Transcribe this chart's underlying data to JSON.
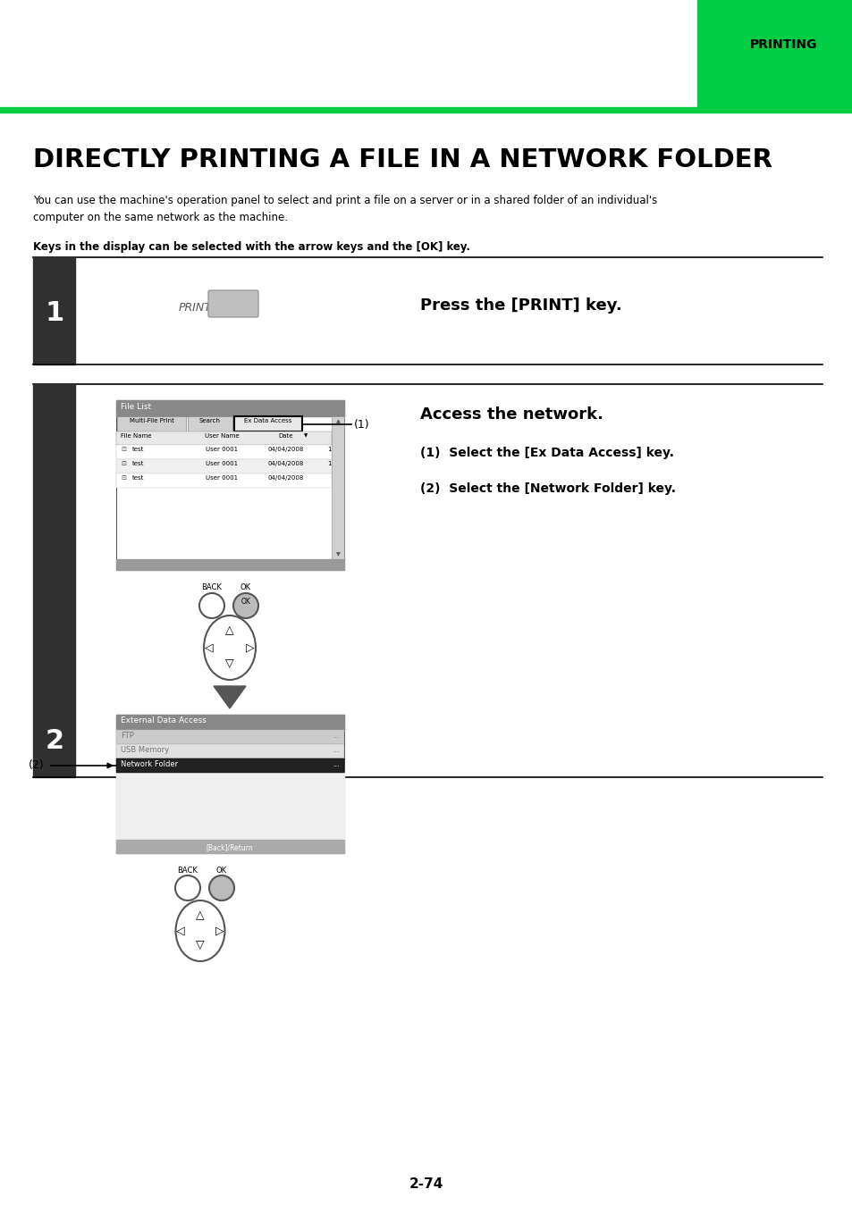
{
  "title": "DIRECTLY PRINTING A FILE IN A NETWORK FOLDER",
  "header_label": "PRINTING",
  "subtitle": "You can use the machine's operation panel to select and print a file on a server or in a shared folder of an individual's\ncomputer on the same network as the machine.",
  "keys_note": "Keys in the display can be selected with the arrow keys and the [OK] key.",
  "step1_num": "1",
  "step1_instruction": "Press the [PRINT] key.",
  "step2_num": "2",
  "step2_title": "Access the network.",
  "step2_sub1": "(1)  Select the [Ex Data Access] key.",
  "step2_sub2": "(2)  Select the [Network Folder] key.",
  "page_num": "2-74",
  "bg_color": "#ffffff",
  "step_bar_color": "#303030",
  "step_num_color": "#ffffff",
  "green_accent": "#00cc44",
  "line_color": "#000000"
}
